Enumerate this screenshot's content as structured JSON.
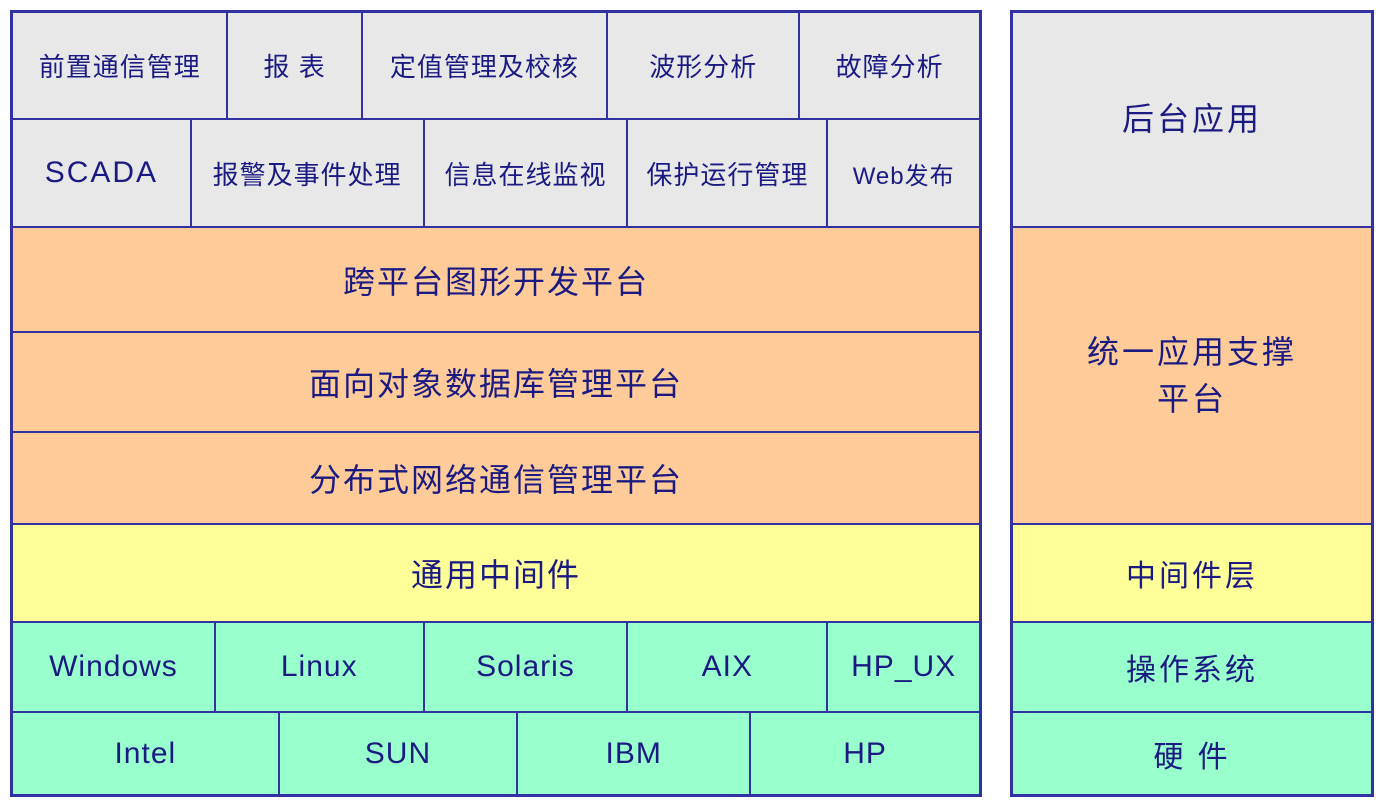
{
  "colors": {
    "border": "#3232a0",
    "text": "#1a1a82",
    "application_fill": "#e8e8e8",
    "platform_fill": "#ffcc99",
    "middleware_fill": "#ffff99",
    "system_fill": "#99ffcc",
    "background": "#ffffff"
  },
  "left_stack": {
    "application_row_top": {
      "cells": [
        "前置通信管理",
        "报 表",
        "定值管理及校核",
        "波形分析",
        "故障分析"
      ]
    },
    "application_row_bottom": {
      "cells": [
        "SCADA",
        "报警及事件处理",
        "信息在线监视",
        "保护运行管理",
        "Web发布"
      ]
    },
    "platform_layers": [
      "跨平台图形开发平台",
      "面向对象数据库管理平台",
      "分布式网络通信管理平台"
    ],
    "middleware_layer": "通用中间件",
    "os_row": {
      "cells": [
        "Windows",
        "Linux",
        "Solaris",
        "AIX",
        "HP_UX"
      ]
    },
    "hardware_row": {
      "cells": [
        "Intel",
        "SUN",
        "IBM",
        "HP"
      ]
    }
  },
  "right_stack": {
    "application_label": "后台应用",
    "platform_label_line1": "统一应用支撑",
    "platform_label_line2": "平台",
    "middleware_label": "中间件层",
    "os_label": "操作系统",
    "hardware_label": "硬 件"
  }
}
